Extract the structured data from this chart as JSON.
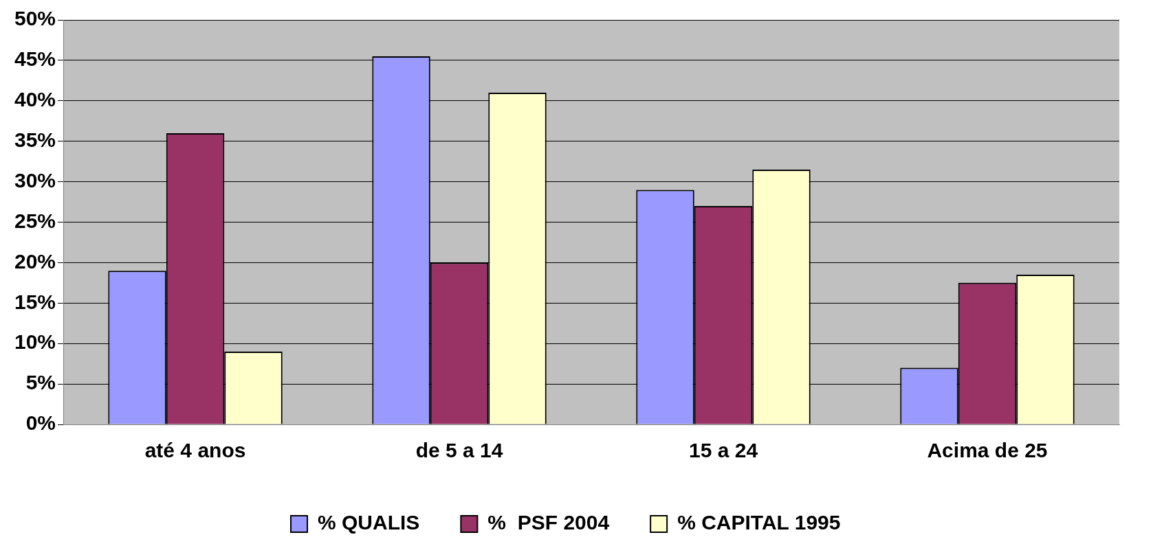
{
  "chart_data": {
    "type": "bar",
    "categories": [
      "até 4 anos",
      "de 5 a 14",
      "15 a 24",
      "Acima de 25"
    ],
    "series": [
      {
        "name": "% QUALIS",
        "color": "#9999ff",
        "values": [
          19,
          45.5,
          29,
          7
        ]
      },
      {
        "name": "%  PSF 2004",
        "color": "#993366",
        "values": [
          36,
          20,
          27,
          17.5
        ]
      },
      {
        "name": "% CAPITAL 1995",
        "color": "#ffffcc",
        "values": [
          9,
          41,
          31.5,
          18.5
        ]
      }
    ],
    "ylim": [
      0,
      50
    ],
    "yticks": [
      {
        "value": 0,
        "label": "0%"
      },
      {
        "value": 5,
        "label": "5%"
      },
      {
        "value": 10,
        "label": "10%"
      },
      {
        "value": 15,
        "label": "15%"
      },
      {
        "value": 20,
        "label": "20%"
      },
      {
        "value": 25,
        "label": "25%"
      },
      {
        "value": 30,
        "label": "30%"
      },
      {
        "value": 35,
        "label": "35%"
      },
      {
        "value": 40,
        "label": "40%"
      },
      {
        "value": 45,
        "label": "45%"
      },
      {
        "value": 50,
        "label": "50%"
      }
    ],
    "grid": "y",
    "legend": "bottom"
  }
}
